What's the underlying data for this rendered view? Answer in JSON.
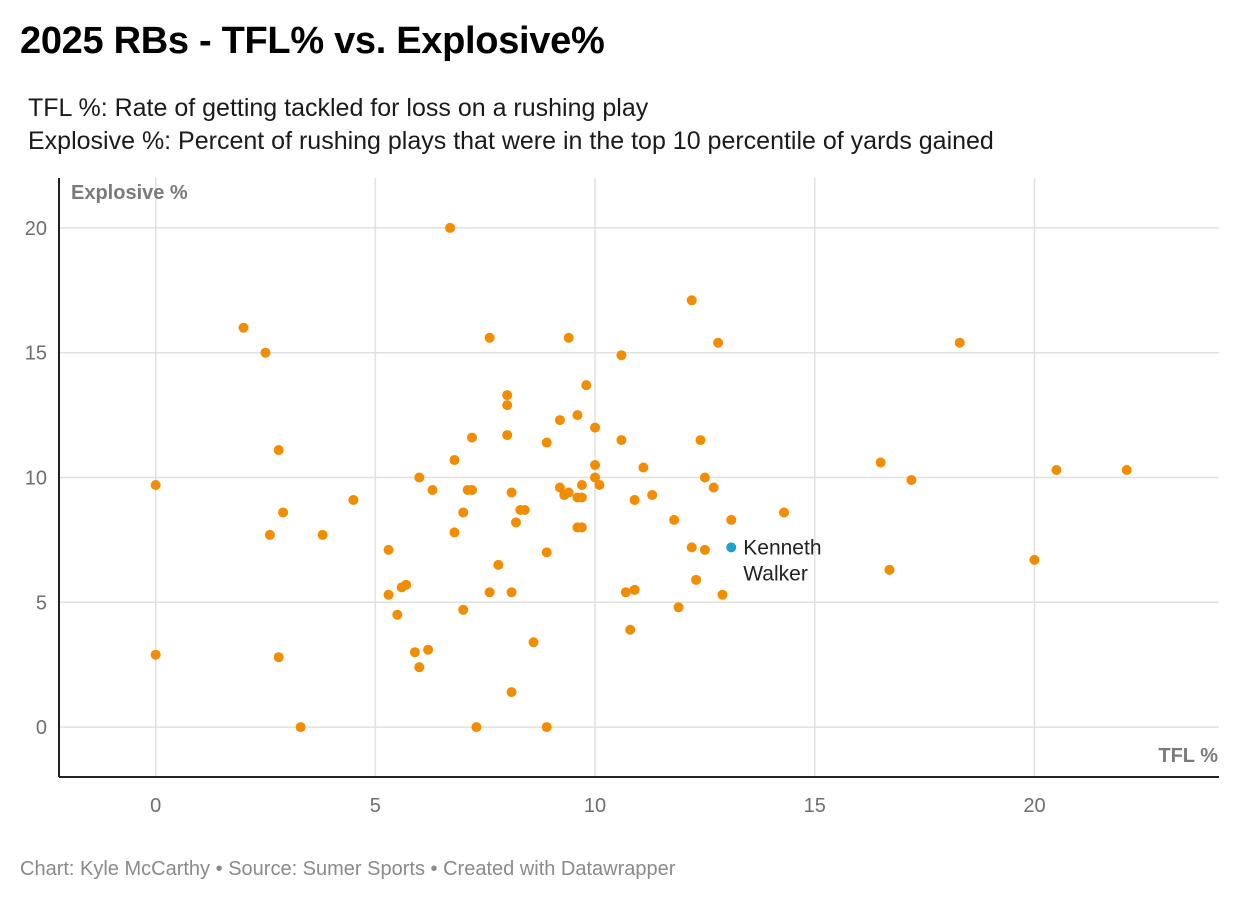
{
  "title": "2025 RBs - TFL% vs. Explosive%",
  "description": [
    "TFL %: Rate of getting tackled for loss on a rushing play",
    "Explosive %: Percent of rushing plays that were in the top 10 percentile of yards gained"
  ],
  "footer": {
    "credit": "Chart: Kyle McCarthy",
    "source": "Source: Sumer Sports",
    "tool": "Created with Datawrapper",
    "separator": "•"
  },
  "chart_data": {
    "type": "scatter",
    "xlabel": "TFL %",
    "ylabel": "Explosive %",
    "xlim": [
      -2.2,
      24.2
    ],
    "ylim": [
      -2,
      22
    ],
    "x_ticks": [
      0,
      5,
      10,
      15,
      20
    ],
    "y_ticks": [
      0,
      5,
      10,
      15,
      20
    ],
    "grid": true,
    "colors": {
      "default": "#f28c00",
      "highlight": "#1ba3c6"
    },
    "highlight": {
      "x": 13.1,
      "y": 7.2,
      "label_lines": [
        "Kenneth",
        "Walker"
      ]
    },
    "points": [
      [
        0,
        9.7
      ],
      [
        0,
        2.9
      ],
      [
        2.0,
        16.0
      ],
      [
        2.5,
        15.0
      ],
      [
        2.6,
        7.7
      ],
      [
        2.8,
        11.1
      ],
      [
        2.8,
        2.8
      ],
      [
        2.9,
        8.6
      ],
      [
        3.3,
        0
      ],
      [
        3.8,
        7.7
      ],
      [
        4.5,
        9.1
      ],
      [
        5.3,
        7.1
      ],
      [
        5.3,
        5.3
      ],
      [
        5.5,
        4.5
      ],
      [
        5.6,
        5.6
      ],
      [
        5.7,
        5.7
      ],
      [
        5.9,
        3.0
      ],
      [
        6.0,
        10.0
      ],
      [
        6.0,
        2.4
      ],
      [
        6.2,
        3.1
      ],
      [
        6.3,
        9.5
      ],
      [
        6.7,
        20.0
      ],
      [
        6.8,
        10.7
      ],
      [
        6.8,
        7.8
      ],
      [
        7.0,
        8.6
      ],
      [
        7.0,
        4.7
      ],
      [
        7.1,
        9.5
      ],
      [
        7.2,
        11.6
      ],
      [
        7.2,
        9.5
      ],
      [
        7.3,
        0
      ],
      [
        7.6,
        15.6
      ],
      [
        7.6,
        5.4
      ],
      [
        7.8,
        6.5
      ],
      [
        8.0,
        13.3
      ],
      [
        8.0,
        12.9
      ],
      [
        8.0,
        11.7
      ],
      [
        8.1,
        9.4
      ],
      [
        8.1,
        5.4
      ],
      [
        8.1,
        1.4
      ],
      [
        8.2,
        8.2
      ],
      [
        8.3,
        8.7
      ],
      [
        8.4,
        8.7
      ],
      [
        8.6,
        3.4
      ],
      [
        8.9,
        11.4
      ],
      [
        8.9,
        7.0
      ],
      [
        8.9,
        0
      ],
      [
        9.2,
        12.3
      ],
      [
        9.2,
        9.6
      ],
      [
        9.3,
        9.3
      ],
      [
        9.4,
        9.4
      ],
      [
        9.4,
        15.6
      ],
      [
        9.6,
        12.5
      ],
      [
        9.6,
        9.2
      ],
      [
        9.6,
        8.0
      ],
      [
        9.7,
        9.7
      ],
      [
        9.7,
        9.2
      ],
      [
        9.7,
        8.0
      ],
      [
        9.8,
        13.7
      ],
      [
        10.0,
        12.0
      ],
      [
        10.0,
        10.5
      ],
      [
        10.0,
        10.0
      ],
      [
        10.1,
        9.7
      ],
      [
        10.6,
        14.9
      ],
      [
        10.6,
        11.5
      ],
      [
        10.7,
        5.4
      ],
      [
        10.8,
        3.9
      ],
      [
        10.9,
        9.1
      ],
      [
        10.9,
        5.5
      ],
      [
        11.1,
        10.4
      ],
      [
        11.3,
        9.3
      ],
      [
        11.8,
        8.3
      ],
      [
        11.9,
        4.8
      ],
      [
        12.2,
        17.1
      ],
      [
        12.2,
        7.2
      ],
      [
        12.3,
        5.9
      ],
      [
        12.4,
        11.5
      ],
      [
        12.5,
        10.0
      ],
      [
        12.5,
        7.1
      ],
      [
        12.7,
        9.6
      ],
      [
        12.8,
        15.4
      ],
      [
        12.9,
        5.3
      ],
      [
        13.1,
        8.3
      ],
      [
        14.3,
        8.6
      ],
      [
        16.5,
        10.6
      ],
      [
        16.7,
        6.3
      ],
      [
        17.2,
        9.9
      ],
      [
        18.3,
        15.4
      ],
      [
        20.0,
        6.7
      ],
      [
        20.5,
        10.3
      ],
      [
        22.1,
        10.3
      ]
    ]
  }
}
